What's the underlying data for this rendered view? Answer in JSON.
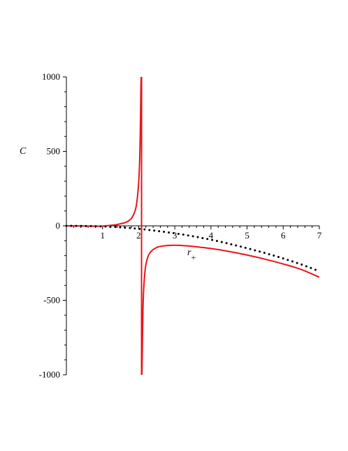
{
  "chart_data": {
    "type": "line",
    "title": "",
    "xlabel": "r",
    "xlabel_subscript": "+",
    "ylabel": "C",
    "xlim": [
      0,
      7
    ],
    "ylim": [
      -1000,
      1000
    ],
    "x_ticks": [
      1,
      2,
      3,
      4,
      5,
      6,
      7
    ],
    "x_tick_labels": [
      "1",
      "2",
      "3",
      "4",
      "5",
      "6",
      "7"
    ],
    "y_ticks": [
      1000,
      500,
      0,
      -500,
      -1000
    ],
    "y_tick_labels": [
      "1000",
      "500",
      "0",
      "-500",
      "-1000"
    ],
    "grid": false,
    "legend": "none",
    "asymptote_x": 2.08,
    "series": [
      {
        "style": "solid",
        "color": "#e8141b",
        "branch": "left",
        "x": [
          0,
          0.5,
          0.8,
          1.0,
          1.2,
          1.4,
          1.6,
          1.7,
          1.8,
          1.9,
          1.95,
          2.0,
          2.03,
          2.05,
          2.06,
          2.07
        ],
        "y": [
          0,
          -1,
          -3,
          -2,
          3,
          9,
          20,
          30,
          50,
          100,
          160,
          290,
          460,
          700,
          900,
          1000
        ]
      },
      {
        "style": "solid",
        "color": "#e8141b",
        "branch": "right",
        "x": [
          2.09,
          2.1,
          2.12,
          2.15,
          2.2,
          2.3,
          2.5,
          2.75,
          3.0,
          3.25,
          3.5,
          4.0,
          4.5,
          5.0,
          5.5,
          6.0,
          6.5,
          7.0
        ],
        "y": [
          -1000,
          -850,
          -550,
          -380,
          -260,
          -185,
          -145,
          -133,
          -130,
          -133,
          -138,
          -152,
          -172,
          -196,
          -224,
          -256,
          -293,
          -345
        ]
      },
      {
        "style": "dotted",
        "color": "#000000",
        "x": [
          0,
          0.5,
          1.0,
          1.5,
          2.0,
          2.5,
          3.0,
          3.5,
          4.0,
          4.5,
          5.0,
          5.5,
          6.0,
          6.5,
          7.0
        ],
        "y": [
          0,
          -1,
          -4,
          -10,
          -20,
          -34,
          -50,
          -70,
          -93,
          -120,
          -150,
          -183,
          -219,
          -259,
          -305
        ]
      }
    ]
  }
}
